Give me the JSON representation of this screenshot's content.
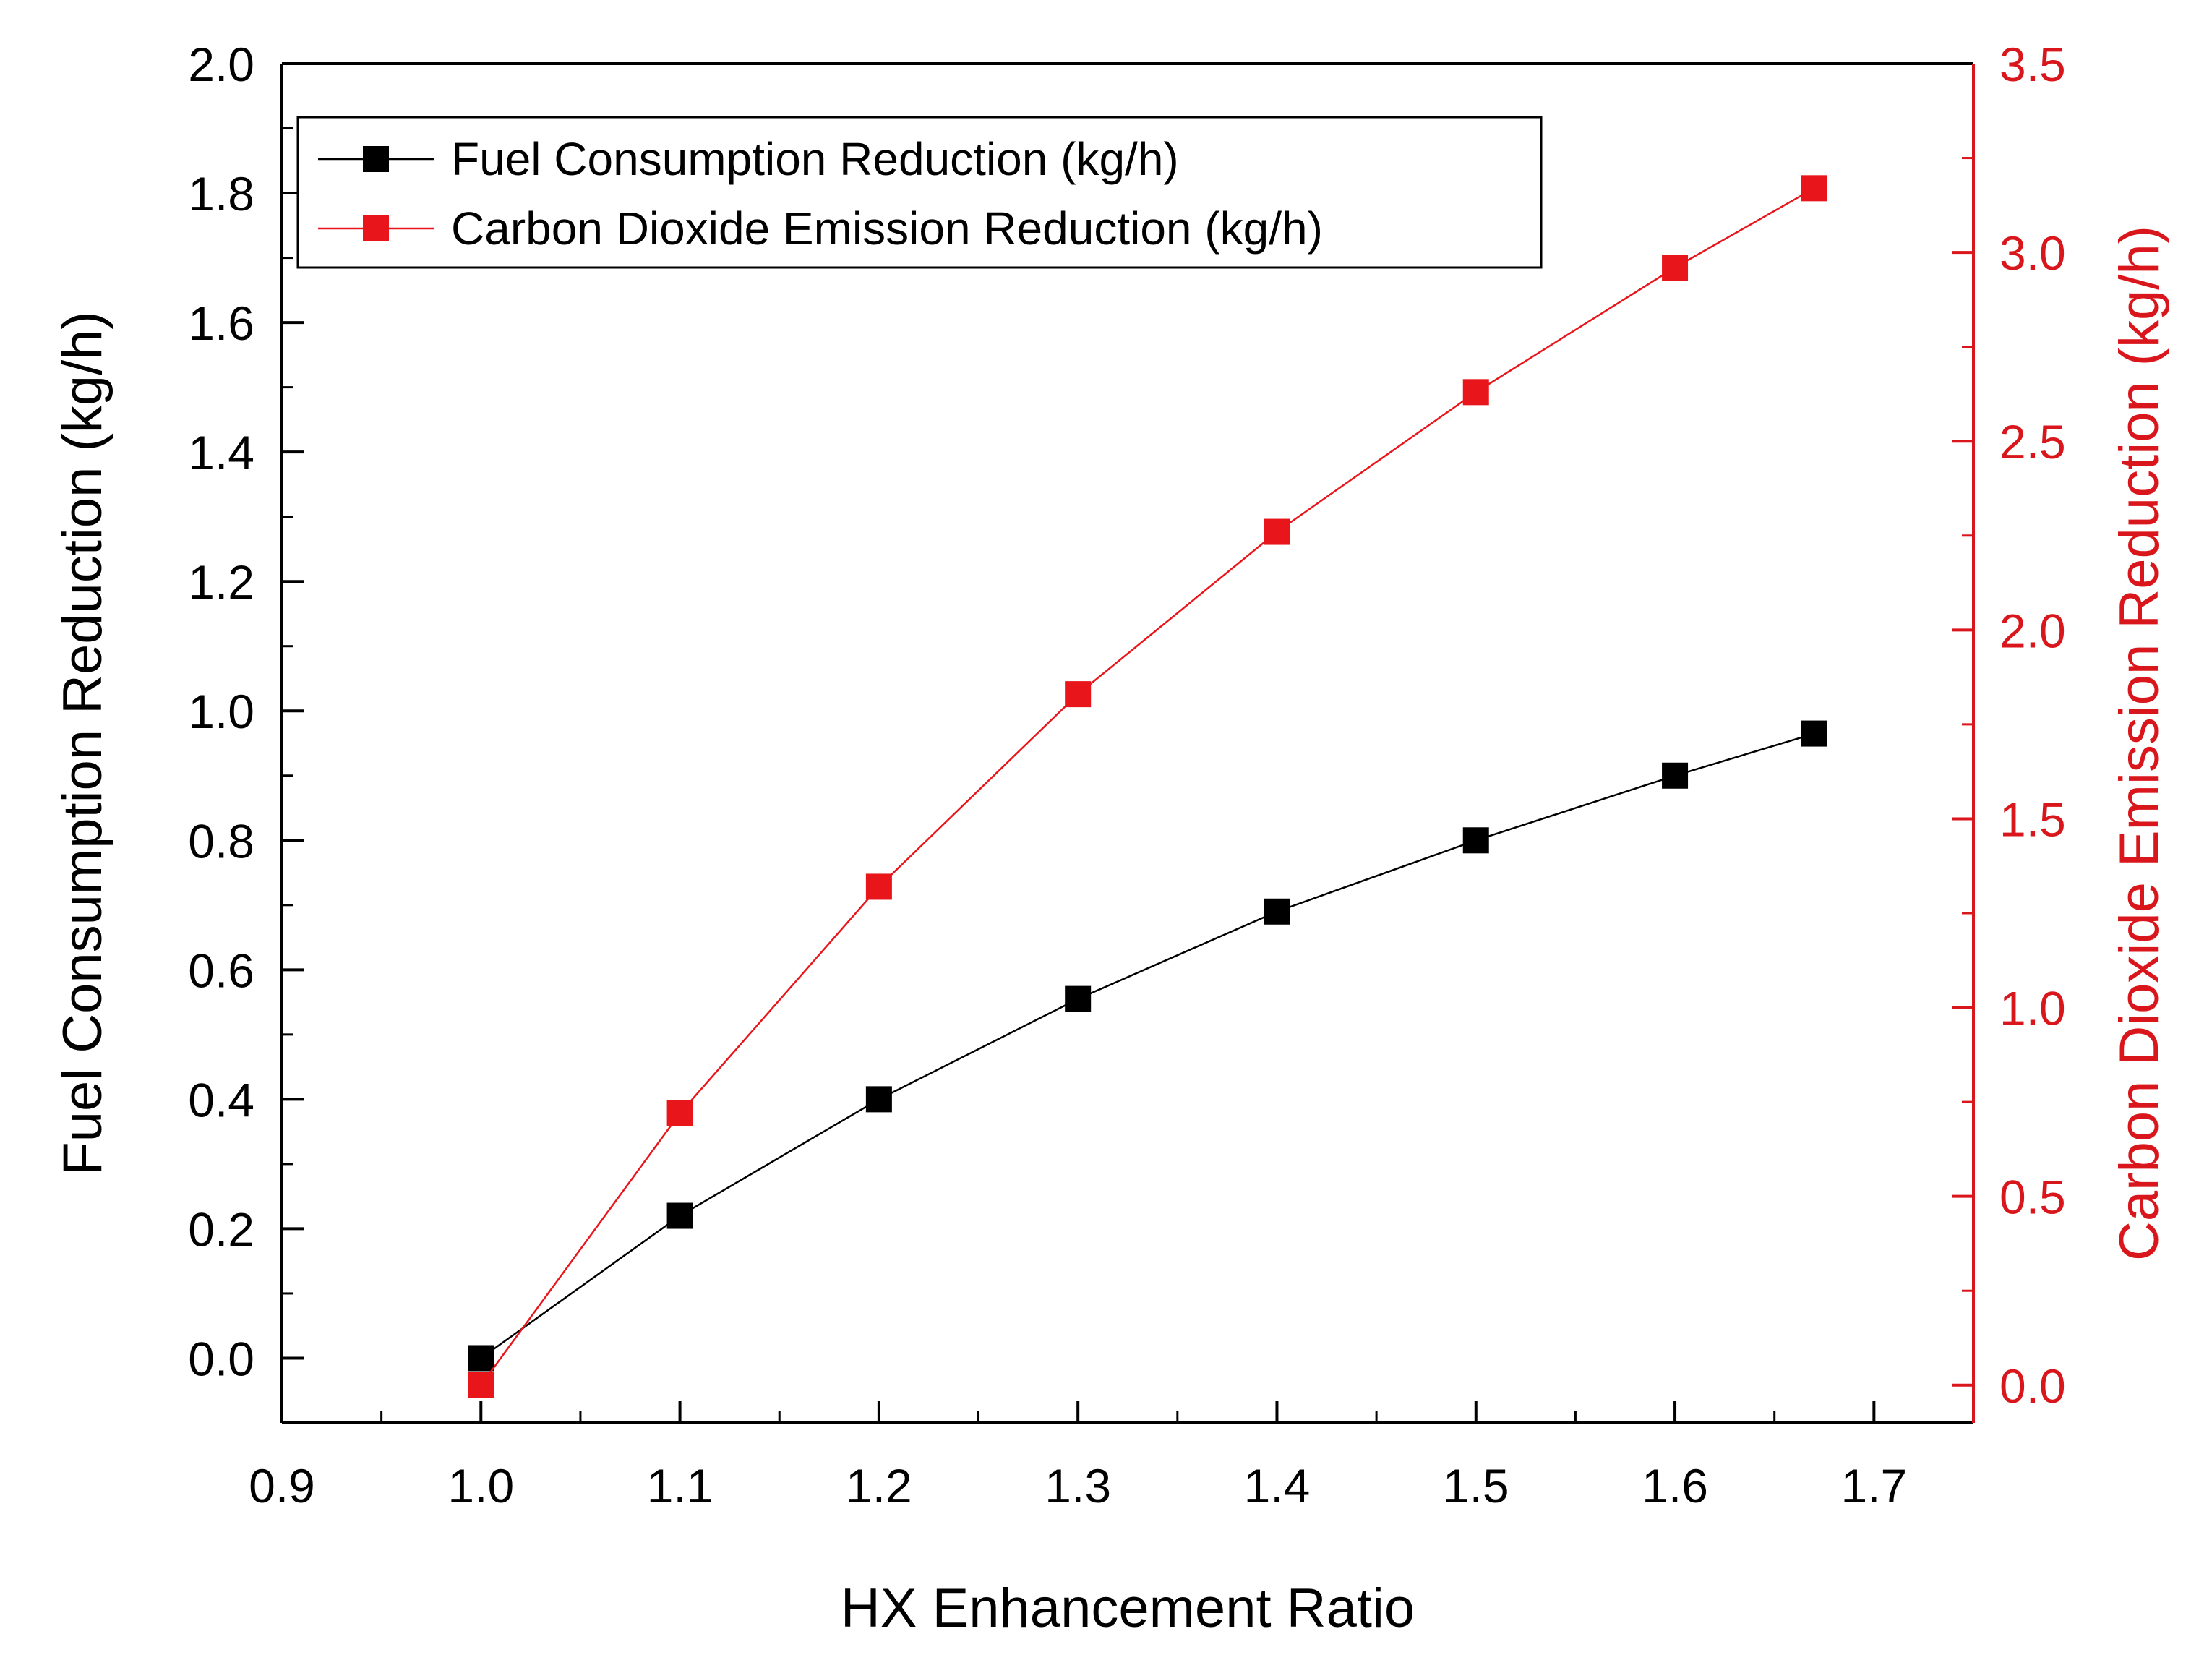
{
  "chart_data": {
    "type": "line",
    "title": "",
    "xlabel": "HX Enhancement Ratio",
    "ylabel": "Fuel Consumption Reduction (kg/h)",
    "y2label": "Carbon Dioxide Emission Reduction (kg/h)",
    "xlim": [
      0.9,
      1.75
    ],
    "ylim": [
      -0.1,
      2.0
    ],
    "y2lim": [
      -0.1,
      3.5
    ],
    "xticks": [
      "0.9",
      "1.0",
      "1.1",
      "1.2",
      "1.3",
      "1.4",
      "1.5",
      "1.6",
      "1.7"
    ],
    "yticks": [
      "0.0",
      "0.2",
      "0.4",
      "0.6",
      "0.8",
      "1.0",
      "1.2",
      "1.4",
      "1.6",
      "1.8",
      "2.0"
    ],
    "y2ticks": [
      "0.0",
      "0.5",
      "1.0",
      "1.5",
      "2.0",
      "2.5",
      "3.0",
      "3.5"
    ],
    "legend_position": "top-left",
    "grid": false,
    "series": [
      {
        "name": "Fuel Consumption Reduction (kg/h)",
        "axis": "left",
        "color": "#000000",
        "x": [
          1.0,
          1.1,
          1.2,
          1.3,
          1.4,
          1.5,
          1.6,
          1.67
        ],
        "values": [
          0.0,
          0.22,
          0.4,
          0.555,
          0.69,
          0.8,
          0.9,
          0.965
        ]
      },
      {
        "name": "Carbon Dioxide Emission Reduction (kg/h)",
        "axis": "right",
        "color": "#e8161b",
        "x": [
          1.0,
          1.1,
          1.2,
          1.3,
          1.4,
          1.5,
          1.6,
          1.67
        ],
        "values": [
          0.0,
          0.72,
          1.32,
          1.83,
          2.26,
          2.63,
          2.96,
          3.17
        ]
      }
    ],
    "colors": {
      "axis_left": "#000000",
      "axis_right": "#d9161b",
      "background": "#ffffff"
    }
  }
}
